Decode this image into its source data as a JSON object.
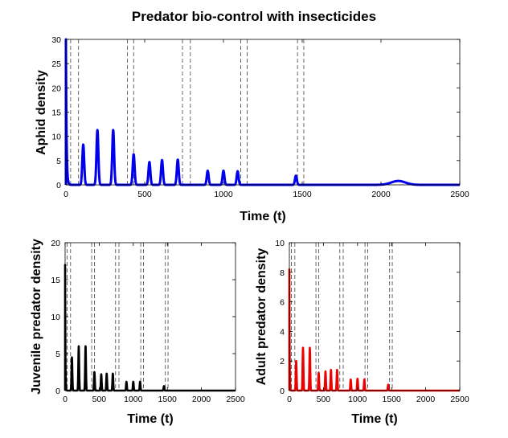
{
  "figure_title": "Predator bio-control with insecticides",
  "chart_data": [
    {
      "id": "aphid",
      "type": "line",
      "title": "Predator bio-control with insecticides",
      "xlabel": "Time (t)",
      "ylabel": "Aphid density",
      "xlim": [
        0,
        2500
      ],
      "ylim": [
        0,
        30
      ],
      "xticks": [
        0,
        500,
        1000,
        1500,
        2000,
        2500
      ],
      "yticks": [
        0,
        5,
        10,
        15,
        20,
        25,
        30
      ],
      "color": "#0000ee",
      "initial_value": 30,
      "peaks": [
        {
          "x": 110,
          "y": 8.3
        },
        {
          "x": 200,
          "y": 11.3
        },
        {
          "x": 300,
          "y": 11.3
        },
        {
          "x": 430,
          "y": 6.3
        },
        {
          "x": 530,
          "y": 4.7
        },
        {
          "x": 610,
          "y": 5.1
        },
        {
          "x": 710,
          "y": 5.2
        },
        {
          "x": 900,
          "y": 2.9
        },
        {
          "x": 1000,
          "y": 2.9
        },
        {
          "x": 1090,
          "y": 2.8
        },
        {
          "x": 1460,
          "y": 1.9
        },
        {
          "x": 2110,
          "y": 0.8
        }
      ],
      "dashed_vlines": [
        30,
        80,
        390,
        430,
        740,
        790,
        1110,
        1150,
        1470,
        1510
      ]
    },
    {
      "id": "juvenile",
      "type": "line",
      "xlabel": "Time (t)",
      "ylabel": "Juvenile predator density",
      "xlim": [
        0,
        2500
      ],
      "ylim": [
        0,
        20
      ],
      "xticks": [
        0,
        500,
        1000,
        1500,
        2000,
        2500
      ],
      "yticks": [
        0,
        5,
        10,
        15,
        20
      ],
      "color": "#000000",
      "initial_value": 17,
      "peaks": [
        {
          "x": 100,
          "y": 4.5
        },
        {
          "x": 200,
          "y": 6
        },
        {
          "x": 300,
          "y": 6
        },
        {
          "x": 430,
          "y": 2.5
        },
        {
          "x": 530,
          "y": 2.2
        },
        {
          "x": 610,
          "y": 2.3
        },
        {
          "x": 700,
          "y": 2.3
        },
        {
          "x": 900,
          "y": 1.2
        },
        {
          "x": 1000,
          "y": 1.2
        },
        {
          "x": 1100,
          "y": 1.2
        },
        {
          "x": 1450,
          "y": 0.6
        }
      ],
      "dashed_vlines": [
        30,
        80,
        390,
        430,
        740,
        790,
        1110,
        1150,
        1470,
        1510
      ]
    },
    {
      "id": "adult",
      "type": "line",
      "xlabel": "Time (t)",
      "ylabel": "Adult predator density",
      "xlim": [
        0,
        2500
      ],
      "ylim": [
        0,
        10
      ],
      "xticks": [
        0,
        500,
        1000,
        1500,
        2000,
        2500
      ],
      "yticks": [
        0,
        2,
        4,
        6,
        8,
        10
      ],
      "color": "#ee0000",
      "initial_value": 8.2,
      "peaks": [
        {
          "x": 100,
          "y": 2
        },
        {
          "x": 200,
          "y": 2.9
        },
        {
          "x": 300,
          "y": 2.9
        },
        {
          "x": 430,
          "y": 1.2
        },
        {
          "x": 530,
          "y": 1.3
        },
        {
          "x": 610,
          "y": 1.4
        },
        {
          "x": 700,
          "y": 1.4
        },
        {
          "x": 900,
          "y": 0.75
        },
        {
          "x": 1000,
          "y": 0.8
        },
        {
          "x": 1100,
          "y": 0.75
        },
        {
          "x": 1450,
          "y": 0.4
        }
      ],
      "dashed_vlines": [
        30,
        80,
        390,
        430,
        740,
        790,
        1110,
        1150,
        1470,
        1510
      ]
    }
  ]
}
